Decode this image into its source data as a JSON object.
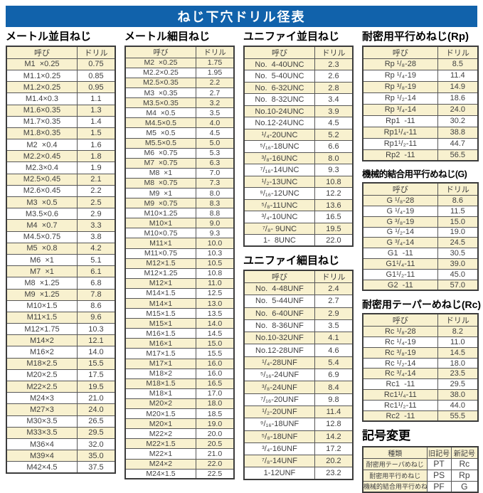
{
  "title": "ねじ下穴ドリル径表",
  "col_headers": {
    "name": "呼び",
    "drill": "ドリル"
  },
  "colors": {
    "accent_blue": "#1162ab",
    "row_cream": "#f8f1cf",
    "border_dark": "#3c3c3c"
  },
  "tables": {
    "metric_coarse": {
      "title": "メートル並目ねじ",
      "rows": [
        [
          "M1  ×0.25",
          "0.75"
        ],
        [
          "M1.1×0.25",
          "0.85"
        ],
        [
          "M1.2×0.25",
          "0.95"
        ],
        [
          "M1.4×0.3",
          "1.1"
        ],
        [
          "M1.6×0.35",
          "1.3"
        ],
        [
          "M1.7×0.35",
          "1.4"
        ],
        [
          "M1.8×0.35",
          "1.5"
        ],
        [
          "M2  ×0.4",
          "1.6"
        ],
        [
          "M2.2×0.45",
          "1.8"
        ],
        [
          "M2.3×0.4",
          "1.9"
        ],
        [
          "M2.5×0.45",
          "2.1"
        ],
        [
          "M2.6×0.45",
          "2.2"
        ],
        [
          "M3  ×0.5",
          "2.5"
        ],
        [
          "M3.5×0.6",
          "2.9"
        ],
        [
          "M4  ×0.7",
          "3.3"
        ],
        [
          "M4.5×0.75",
          "3.8"
        ],
        [
          "M5  ×0.8",
          "4.2"
        ],
        [
          "M6  ×1",
          "5.1"
        ],
        [
          "M7  ×1",
          "6.1"
        ],
        [
          "M8  ×1.25",
          "6.8"
        ],
        [
          "M9  ×1.25",
          "7.8"
        ],
        [
          "M10×1.5",
          "8.6"
        ],
        [
          "M11×1.5",
          "9.6"
        ],
        [
          "M12×1.75",
          "10.3"
        ],
        [
          "M14×2",
          "12.1"
        ],
        [
          "M16×2",
          "14.0"
        ],
        [
          "M18×2.5",
          "15.5"
        ],
        [
          "M20×2.5",
          "17.5"
        ],
        [
          "M22×2.5",
          "19.5"
        ],
        [
          "M24×3",
          "21.0"
        ],
        [
          "M27×3",
          "24.0"
        ],
        [
          "M30×3.5",
          "26.5"
        ],
        [
          "M33×3.5",
          "29.5"
        ],
        [
          "M36×4",
          "32.0"
        ],
        [
          "M39×4",
          "35.0"
        ],
        [
          "M42×4.5",
          "37.5"
        ]
      ]
    },
    "metric_fine": {
      "title": "メートル細目ねじ",
      "rows": [
        [
          "M2  ×0.25",
          "1.75"
        ],
        [
          "M2.2×0.25",
          "1.95"
        ],
        [
          "M2.5×0.35",
          "2.2"
        ],
        [
          "M3  ×0.35",
          "2.7"
        ],
        [
          "M3.5×0.35",
          "3.2"
        ],
        [
          "M4  ×0.5",
          "3.5"
        ],
        [
          "M4.5×0.5",
          "4.0"
        ],
        [
          "M5  ×0.5",
          "4.5"
        ],
        [
          "M5.5×0.5",
          "5.0"
        ],
        [
          "M6  ×0.75",
          "5.3"
        ],
        [
          "M7  ×0.75",
          "6.3"
        ],
        [
          "M8  ×1",
          "7.0"
        ],
        [
          "M8  ×0.75",
          "7.3"
        ],
        [
          "M9  ×1",
          "8.0"
        ],
        [
          "M9  ×0.75",
          "8.3"
        ],
        [
          "M10×1.25",
          "8.8"
        ],
        [
          "M10×1",
          "9.0"
        ],
        [
          "M10×0.75",
          "9.3"
        ],
        [
          "M11×1",
          "10.0"
        ],
        [
          "M11×0.75",
          "10.3"
        ],
        [
          "M12×1.5",
          "10.5"
        ],
        [
          "M12×1.25",
          "10.8"
        ],
        [
          "M12×1",
          "11.0"
        ],
        [
          "M14×1.5",
          "12.5"
        ],
        [
          "M14×1",
          "13.0"
        ],
        [
          "M15×1.5",
          "13.5"
        ],
        [
          "M15×1",
          "14.0"
        ],
        [
          "M16×1.5",
          "14.5"
        ],
        [
          "M16×1",
          "15.0"
        ],
        [
          "M17×1.5",
          "15.5"
        ],
        [
          "M17×1",
          "16.0"
        ],
        [
          "M18×2",
          "16.0"
        ],
        [
          "M18×1.5",
          "16.5"
        ],
        [
          "M18×1",
          "17.0"
        ],
        [
          "M20×2",
          "18.0"
        ],
        [
          "M20×1.5",
          "18.5"
        ],
        [
          "M20×1",
          "19.0"
        ],
        [
          "M22×2",
          "20.0"
        ],
        [
          "M22×1.5",
          "20.5"
        ],
        [
          "M22×1",
          "21.0"
        ],
        [
          "M24×2",
          "22.0"
        ],
        [
          "M24×1.5",
          "22.5"
        ]
      ]
    },
    "unified_coarse": {
      "title": "ユニファイ並目ねじ",
      "rows": [
        [
          "No.  4-40UNC",
          "2.3"
        ],
        [
          "No.  5-40UNC",
          "2.6"
        ],
        [
          "No.  6-32UNC",
          "2.8"
        ],
        [
          "No.  8-32UNC",
          "3.4"
        ],
        [
          "No.10-24UNC",
          "3.9"
        ],
        [
          "No.12-24UNC",
          "4.5"
        ],
        [
          "¹/₄-20UNC",
          "5.2"
        ],
        [
          "⁵/₁₆-18UNC",
          "6.6"
        ],
        [
          "³/₈-16UNC",
          "8.0"
        ],
        [
          "⁷/₁₆-14UNC",
          "9.3"
        ],
        [
          "¹/₂-13UNC",
          "10.8"
        ],
        [
          "⁹/₁₆-12UNC",
          "12.2"
        ],
        [
          "⁵/₈-11UNC",
          "13.6"
        ],
        [
          "³/₄-10UNC",
          "16.5"
        ],
        [
          "⁷/₈- 9UNC",
          "19.5"
        ],
        [
          "1-  8UNC",
          "22.0"
        ]
      ]
    },
    "unified_fine": {
      "title": "ユニファイ細目ねじ",
      "rows": [
        [
          "No.  4-48UNF",
          "2.4"
        ],
        [
          "No.  5-44UNF",
          "2.7"
        ],
        [
          "No.  6-40UNF",
          "2.9"
        ],
        [
          "No.  8-36UNF",
          "3.5"
        ],
        [
          "No.10-32UNF",
          "4.1"
        ],
        [
          "No.12-28UNF",
          "4.6"
        ],
        [
          "¹/₄-28UNF",
          "5.4"
        ],
        [
          "⁵/₁₆-24UNF",
          "6.9"
        ],
        [
          "³/₈-24UNF",
          "8.4"
        ],
        [
          "⁷/₁₆-20UNF",
          "9.8"
        ],
        [
          "¹/₂-20UNF",
          "11.4"
        ],
        [
          "⁹/₁₆-18UNF",
          "12.8"
        ],
        [
          "⁵/₈-18UNF",
          "14.2"
        ],
        [
          "³/₄-16UNF",
          "17.2"
        ],
        [
          "⁷/₈-14UNF",
          "20.2"
        ],
        [
          "1-12UNF",
          "23.2"
        ]
      ]
    },
    "rp": {
      "title": "耐密用平行めねじ(Rp)",
      "rows": [
        [
          "Rp ¹/₈-28",
          "8.5"
        ],
        [
          "Rp ¹/₄-19",
          "11.4"
        ],
        [
          "Rp ³/₈-19",
          "14.9"
        ],
        [
          "Rp ¹/₂-14",
          "18.6"
        ],
        [
          "Rp ³/₄-14",
          "24.0"
        ],
        [
          "Rp1  -11",
          "30.2"
        ],
        [
          "Rp1¹/₄-11",
          "38.8"
        ],
        [
          "Rp1¹/₂-11",
          "44.7"
        ],
        [
          "Rp2  -11",
          "56.5"
        ]
      ]
    },
    "g": {
      "title": "機械的結合用平行めねじ(G)",
      "rows": [
        [
          "G ¹/₈-28",
          "8.6"
        ],
        [
          "G ¹/₄-19",
          "11.5"
        ],
        [
          "G ³/₈-19",
          "15.0"
        ],
        [
          "G ¹/₂-14",
          "19.0"
        ],
        [
          "G ³/₄-14",
          "24.5"
        ],
        [
          "G1  -11",
          "30.5"
        ],
        [
          "G1¹/₄-11",
          "39.0"
        ],
        [
          "G1¹/₂-11",
          "45.0"
        ],
        [
          "G2  -11",
          "57.0"
        ]
      ]
    },
    "rc": {
      "title": "耐密用テーパーめねじ(Rc)",
      "rows": [
        [
          "Rc ¹/₈-28",
          "8.2"
        ],
        [
          "Rc ¹/₄-19",
          "11.0"
        ],
        [
          "Rc ³/₈-19",
          "14.5"
        ],
        [
          "Rc ¹/₂-14",
          "18.0"
        ],
        [
          "Rc ³/₄-14",
          "23.5"
        ],
        [
          "Rc1  -11",
          "29.5"
        ],
        [
          "Rc1¹/₄-11",
          "38.0"
        ],
        [
          "Rc1¹/₂-11",
          "44.0"
        ],
        [
          "Rc2  -11",
          "55.5"
        ]
      ]
    },
    "symbol_change": {
      "title": "記号変更",
      "headers": [
        "種類",
        "旧記号",
        "新記号"
      ],
      "rows": [
        [
          "耐密用テーパめねじ",
          "PT",
          "Rc"
        ],
        [
          "耐密用平行めねじ",
          "PS",
          "Rp"
        ],
        [
          "機械的結合用平行めねじ",
          "PF",
          "G"
        ]
      ]
    }
  }
}
